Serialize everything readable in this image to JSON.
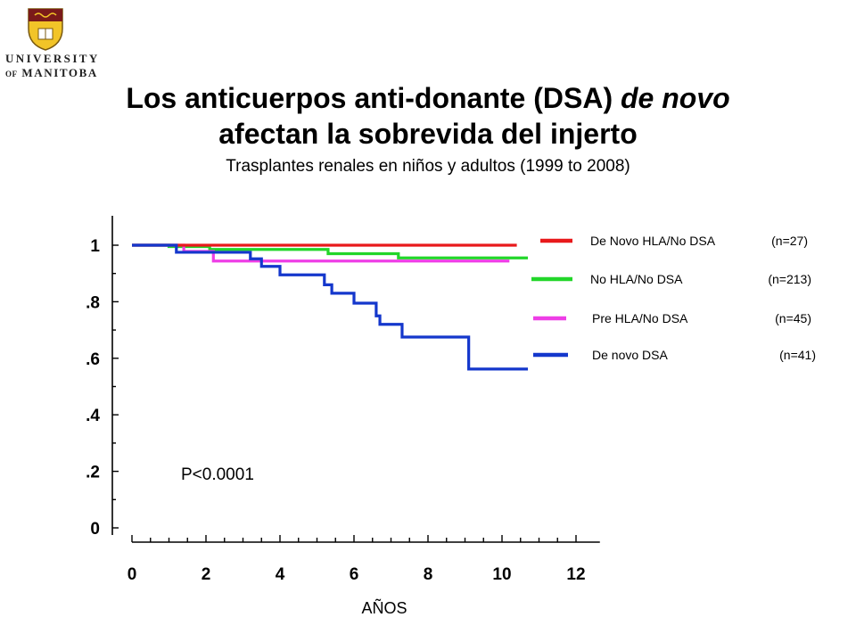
{
  "logo": {
    "line1": "UNIVERSITY",
    "line2_prefix": "OF",
    "line2_main": "MANITOBA"
  },
  "title": {
    "line1_normal": "Los anticuerpos anti-donante (DSA) ",
    "line1_italic": "de novo",
    "line2": "afectan la sobrevida del injerto"
  },
  "subtitle": "Trasplantes renales en niños y adultos  (1999 to 2008)",
  "colors": {
    "red": "#e8191b",
    "green": "#22d62a",
    "magenta": "#ee3ee6",
    "blue": "#1437cc"
  },
  "chart_data": {
    "type": "line",
    "step": true,
    "xlabel": "AÑOS",
    "ylabel": "",
    "xlim": [
      -0.5,
      12.5
    ],
    "ylim": [
      -0.05,
      1.08
    ],
    "x_ticks": [
      0,
      2,
      4,
      6,
      8,
      10,
      12
    ],
    "x_tick_labels": [
      "0",
      "2",
      "4",
      "6",
      "8",
      "10",
      "12"
    ],
    "y_ticks": [
      0,
      0.2,
      0.4,
      0.6,
      0.8,
      1.0
    ],
    "y_tick_labels": [
      "0",
      ".2",
      ".4",
      ".6",
      ".8",
      "1"
    ],
    "annotation": "P<0.0001",
    "series": [
      {
        "name": "De Novo HLA/No DSA (n=27)",
        "legend_name": "De Novo HLA/No DSA",
        "legend_n": "(n=27)",
        "color": "#e8191b",
        "x": [
          0,
          10.4
        ],
        "y": [
          1.0,
          1.0
        ]
      },
      {
        "name": "No HLA/No DSA (n=213)",
        "legend_name": "No HLA/No DSA",
        "legend_n": "(n=213)",
        "color": "#22d62a",
        "x": [
          0,
          1.0,
          2.1,
          5.3,
          7.2,
          10.7
        ],
        "y": [
          1.0,
          0.995,
          0.985,
          0.97,
          0.955,
          0.955
        ]
      },
      {
        "name": "Pre HLA/No DSA (n=45)",
        "legend_name": "Pre HLA/No DSA",
        "legend_n": "(n=45)",
        "color": "#ee3ee6",
        "x": [
          0,
          1.4,
          2.2,
          10.2
        ],
        "y": [
          1.0,
          0.978,
          0.944,
          0.944
        ]
      },
      {
        "name": "De novo DSA (n=41)",
        "legend_name": "De novo DSA",
        "legend_n": "(n=41)",
        "color": "#1437cc",
        "x": [
          0,
          1.2,
          2.3,
          3.2,
          3.5,
          4.0,
          5.2,
          5.4,
          6.0,
          6.6,
          6.7,
          7.3,
          9.1,
          10.7
        ],
        "y": [
          1.0,
          0.975,
          0.975,
          0.952,
          0.925,
          0.895,
          0.86,
          0.83,
          0.795,
          0.75,
          0.72,
          0.675,
          0.562,
          0.562
        ]
      }
    ]
  }
}
